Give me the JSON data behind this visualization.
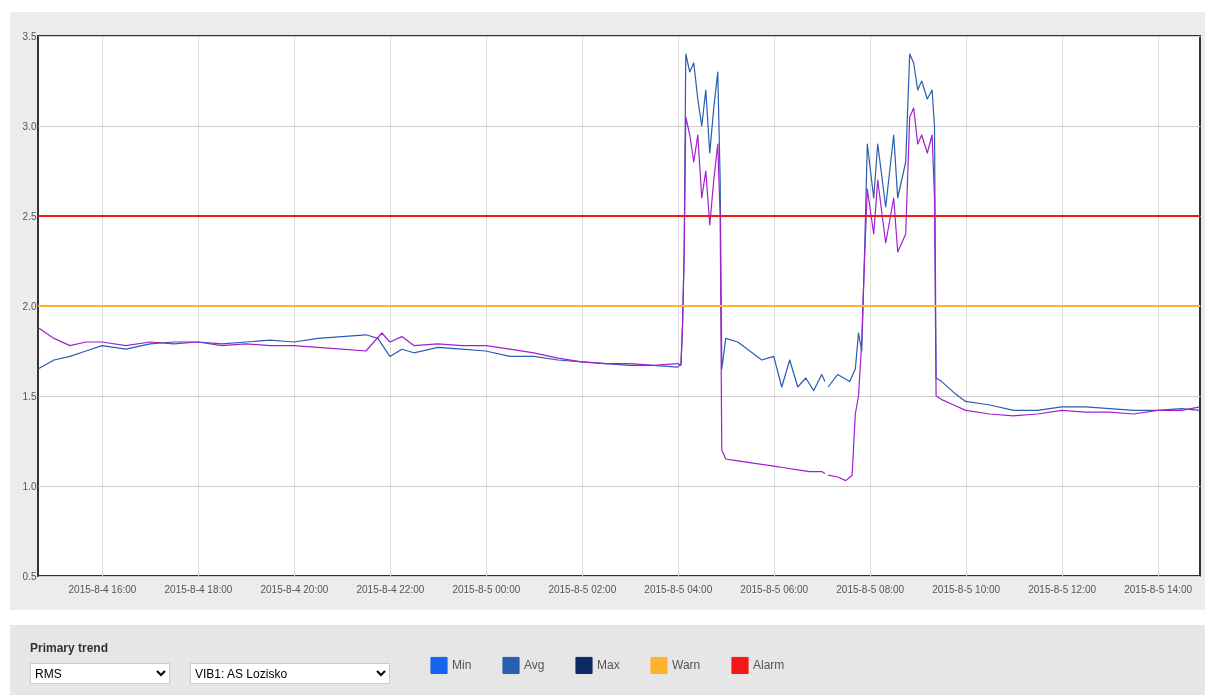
{
  "chart_data": {
    "type": "line",
    "annotations": [
      "Primary trend",
      "RMS",
      "VIB1: AS Lozisko"
    ],
    "xlim": [
      "2015-08-04T14:40",
      "2015-08-05T14:53"
    ],
    "xticks": [
      {
        "value": "2015-08-04T16:00",
        "label": "2015-8-4 16:00"
      },
      {
        "value": "2015-08-04T18:00",
        "label": "2015-8-4 18:00"
      },
      {
        "value": "2015-08-04T20:00",
        "label": "2015-8-4 20:00"
      },
      {
        "value": "2015-08-04T22:00",
        "label": "2015-8-4 22:00"
      },
      {
        "value": "2015-08-05T00:00",
        "label": "2015-8-5 00:00"
      },
      {
        "value": "2015-08-05T02:00",
        "label": "2015-8-5 02:00"
      },
      {
        "value": "2015-08-05T04:00",
        "label": "2015-8-5 04:00"
      },
      {
        "value": "2015-08-05T06:00",
        "label": "2015-8-5 06:00"
      },
      {
        "value": "2015-08-05T08:00",
        "label": "2015-8-5 08:00"
      },
      {
        "value": "2015-08-05T10:00",
        "label": "2015-8-5 10:00"
      },
      {
        "value": "2015-08-05T12:00",
        "label": "2015-8-5 12:00"
      },
      {
        "value": "2015-08-05T14:00",
        "label": "2015-8-5 14:00"
      }
    ],
    "ylim": [
      0.5,
      3.5
    ],
    "yticks": [
      {
        "value": 0.5,
        "label": "0.5"
      },
      {
        "value": 1,
        "label": "1.0"
      },
      {
        "value": 1.5,
        "label": "1.5"
      },
      {
        "value": 2,
        "label": "2.0"
      },
      {
        "value": 2.5,
        "label": "2.5"
      },
      {
        "value": 3,
        "label": "3.0"
      },
      {
        "value": 3.5,
        "label": "3.5"
      }
    ],
    "grid": true,
    "legend": "bottom",
    "line_style": "solid",
    "marker": "none",
    "ref_lines": [
      {
        "axis": "y",
        "value": 2.0,
        "label": "Warn",
        "color": "#ffb32c"
      },
      {
        "axis": "y",
        "value": 2.5,
        "label": "Alarm",
        "color": "#f01818"
      }
    ],
    "series": [
      {
        "name": "Min",
        "color": "#1565f0"
      },
      {
        "name": "Avg",
        "color": "#2a5db0",
        "x": [
          "2015-08-04T14:40",
          "2015-08-04T15:00",
          "2015-08-04T15:20",
          "2015-08-04T15:40",
          "2015-08-04T16:00",
          "2015-08-04T16:30",
          "2015-08-04T17:00",
          "2015-08-04T17:30",
          "2015-08-04T18:00",
          "2015-08-04T18:30",
          "2015-08-04T19:00",
          "2015-08-04T19:30",
          "2015-08-04T20:00",
          "2015-08-04T20:30",
          "2015-08-04T21:00",
          "2015-08-04T21:30",
          "2015-08-04T21:45",
          "2015-08-04T22:00",
          "2015-08-04T22:15",
          "2015-08-04T22:30",
          "2015-08-04T23:00",
          "2015-08-04T23:30",
          "2015-08-05T00:00",
          "2015-08-05T00:30",
          "2015-08-05T01:00",
          "2015-08-05T01:30",
          "2015-08-05T02:00",
          "2015-08-05T02:30",
          "2015-08-05T03:00",
          "2015-08-05T03:30",
          "2015-08-05T04:00",
          "2015-08-05T04:04",
          "2015-08-05T04:06",
          "2015-08-05T04:08",
          "2015-08-05T04:10",
          "2015-08-05T04:15",
          "2015-08-05T04:20",
          "2015-08-05T04:25",
          "2015-08-05T04:30",
          "2015-08-05T04:35",
          "2015-08-05T04:40",
          "2015-08-05T04:45",
          "2015-08-05T04:50",
          "2015-08-05T04:53",
          "2015-08-05T04:55",
          "2015-08-05T05:00",
          "2015-08-05T05:15",
          "2015-08-05T05:30",
          "2015-08-05T05:45",
          "2015-08-05T06:00",
          "2015-08-05T06:10",
          "2015-08-05T06:20",
          "2015-08-05T06:30",
          "2015-08-05T06:40",
          "2015-08-05T06:50",
          "2015-08-05T07:00",
          "2015-08-05T07:04",
          "2015-08-05T07:06",
          "2015-08-05T07:08",
          "2015-08-05T07:20",
          "2015-08-05T07:35",
          "2015-08-05T07:42",
          "2015-08-05T07:46",
          "2015-08-05T07:50",
          "2015-08-05T07:53",
          "2015-08-05T07:57",
          "2015-08-05T08:05",
          "2015-08-05T08:10",
          "2015-08-05T08:20",
          "2015-08-05T08:30",
          "2015-08-05T08:35",
          "2015-08-05T08:45",
          "2015-08-05T08:50",
          "2015-08-05T08:55",
          "2015-08-05T09:00",
          "2015-08-05T09:05",
          "2015-08-05T09:12",
          "2015-08-05T09:18",
          "2015-08-05T09:21",
          "2015-08-05T09:23",
          "2015-08-05T09:30",
          "2015-08-05T09:45",
          "2015-08-05T10:00",
          "2015-08-05T10:30",
          "2015-08-05T11:00",
          "2015-08-05T11:30",
          "2015-08-05T12:00",
          "2015-08-05T12:30",
          "2015-08-05T13:00",
          "2015-08-05T13:30",
          "2015-08-05T14:00",
          "2015-08-05T14:30",
          "2015-08-05T14:53"
        ],
        "values": [
          1.65,
          1.7,
          1.72,
          1.75,
          1.78,
          1.76,
          1.79,
          1.8,
          1.8,
          1.79,
          1.8,
          1.81,
          1.8,
          1.82,
          1.83,
          1.84,
          1.82,
          1.72,
          1.76,
          1.74,
          1.77,
          1.76,
          1.75,
          1.72,
          1.72,
          1.7,
          1.69,
          1.68,
          1.67,
          1.67,
          1.66,
          1.68,
          1.9,
          2.3,
          3.4,
          3.3,
          3.35,
          3.15,
          3.0,
          3.2,
          2.85,
          3.1,
          3.3,
          2.7,
          1.65,
          1.82,
          1.8,
          1.75,
          1.7,
          1.72,
          1.55,
          1.7,
          1.55,
          1.6,
          1.53,
          1.62,
          1.58,
          null,
          1.55,
          1.62,
          1.58,
          1.65,
          1.85,
          1.75,
          2.2,
          2.9,
          2.6,
          2.9,
          2.55,
          2.95,
          2.6,
          2.8,
          3.4,
          3.35,
          3.2,
          3.25,
          3.15,
          3.2,
          3.0,
          1.6,
          1.58,
          1.52,
          1.47,
          1.45,
          1.42,
          1.42,
          1.44,
          1.44,
          1.43,
          1.42,
          1.42,
          1.43,
          1.42
        ]
      },
      {
        "name": "Max",
        "color": "#0b2a66"
      },
      {
        "color": "#a020d0",
        "x": [
          "2015-08-04T14:40",
          "2015-08-04T15:00",
          "2015-08-04T15:20",
          "2015-08-04T15:40",
          "2015-08-04T16:00",
          "2015-08-04T16:30",
          "2015-08-04T17:00",
          "2015-08-04T17:30",
          "2015-08-04T18:00",
          "2015-08-04T18:30",
          "2015-08-04T19:00",
          "2015-08-04T19:30",
          "2015-08-04T20:00",
          "2015-08-04T20:30",
          "2015-08-04T21:00",
          "2015-08-04T21:30",
          "2015-08-04T21:50",
          "2015-08-04T22:00",
          "2015-08-04T22:15",
          "2015-08-04T22:30",
          "2015-08-04T23:00",
          "2015-08-04T23:30",
          "2015-08-05T00:00",
          "2015-08-05T00:30",
          "2015-08-05T01:00",
          "2015-08-05T01:30",
          "2015-08-05T02:00",
          "2015-08-05T02:30",
          "2015-08-05T03:00",
          "2015-08-05T03:30",
          "2015-08-05T04:00",
          "2015-08-05T04:04",
          "2015-08-05T04:06",
          "2015-08-05T04:08",
          "2015-08-05T04:10",
          "2015-08-05T04:15",
          "2015-08-05T04:20",
          "2015-08-05T04:25",
          "2015-08-05T04:30",
          "2015-08-05T04:35",
          "2015-08-05T04:40",
          "2015-08-05T04:45",
          "2015-08-05T04:50",
          "2015-08-05T04:53",
          "2015-08-05T04:55",
          "2015-08-05T05:00",
          "2015-08-05T05:15",
          "2015-08-05T05:30",
          "2015-08-05T05:45",
          "2015-08-05T06:00",
          "2015-08-05T06:15",
          "2015-08-05T06:30",
          "2015-08-05T06:45",
          "2015-08-05T07:00",
          "2015-08-05T07:04",
          "2015-08-05T07:06",
          "2015-08-05T07:08",
          "2015-08-05T07:20",
          "2015-08-05T07:30",
          "2015-08-05T07:38",
          "2015-08-05T07:42",
          "2015-08-05T07:46",
          "2015-08-05T07:50",
          "2015-08-05T07:53",
          "2015-08-05T07:57",
          "2015-08-05T08:05",
          "2015-08-05T08:10",
          "2015-08-05T08:20",
          "2015-08-05T08:30",
          "2015-08-05T08:35",
          "2015-08-05T08:45",
          "2015-08-05T08:50",
          "2015-08-05T08:55",
          "2015-08-05T09:00",
          "2015-08-05T09:05",
          "2015-08-05T09:12",
          "2015-08-05T09:18",
          "2015-08-05T09:21",
          "2015-08-05T09:23",
          "2015-08-05T09:30",
          "2015-08-05T09:45",
          "2015-08-05T10:00",
          "2015-08-05T10:30",
          "2015-08-05T11:00",
          "2015-08-05T11:30",
          "2015-08-05T12:00",
          "2015-08-05T12:30",
          "2015-08-05T13:00",
          "2015-08-05T13:30",
          "2015-08-05T14:00",
          "2015-08-05T14:30",
          "2015-08-05T14:53"
        ],
        "values": [
          1.88,
          1.82,
          1.78,
          1.8,
          1.8,
          1.78,
          1.8,
          1.79,
          1.8,
          1.78,
          1.79,
          1.78,
          1.78,
          1.77,
          1.76,
          1.75,
          1.85,
          1.8,
          1.83,
          1.78,
          1.79,
          1.78,
          1.78,
          1.76,
          1.74,
          1.71,
          1.69,
          1.68,
          1.68,
          1.67,
          1.68,
          1.67,
          1.9,
          2.3,
          3.05,
          2.95,
          2.8,
          2.95,
          2.6,
          2.75,
          2.45,
          2.7,
          2.9,
          2.5,
          1.2,
          1.15,
          1.14,
          1.13,
          1.12,
          1.11,
          1.1,
          1.09,
          1.08,
          1.08,
          1.07,
          null,
          1.06,
          1.05,
          1.03,
          1.06,
          1.4,
          1.5,
          1.8,
          2.2,
          2.65,
          2.4,
          2.7,
          2.35,
          2.6,
          2.3,
          2.4,
          3.05,
          3.1,
          2.9,
          2.95,
          2.85,
          2.95,
          2.6,
          1.5,
          1.48,
          1.45,
          1.42,
          1.4,
          1.39,
          1.4,
          1.42,
          1.41,
          1.41,
          1.4,
          1.42,
          1.42,
          1.44
        ]
      }
    ]
  }
}
